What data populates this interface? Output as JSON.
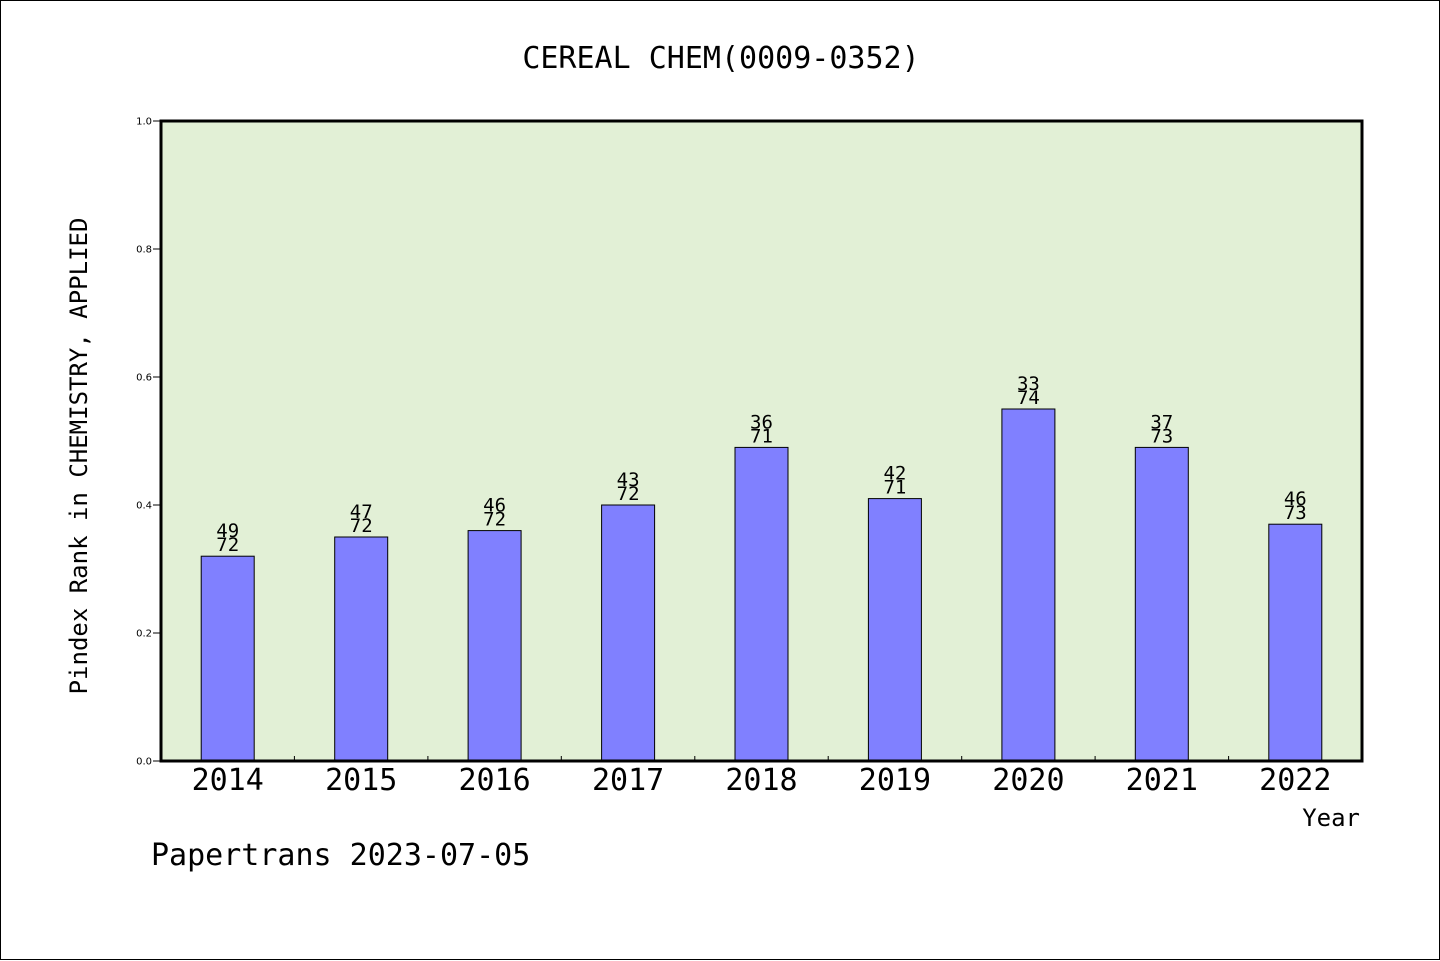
{
  "chart_data": {
    "type": "bar",
    "title": "CEREAL CHEM(0009-0352)",
    "ylabel": "Pindex Rank in CHEMISTRY, APPLIED",
    "xlabel": "Year",
    "ylim": [
      0,
      1.0
    ],
    "yticks": [
      "0.0",
      "0.2",
      "0.4",
      "0.6",
      "0.8",
      "1.0"
    ],
    "categories": [
      "2014",
      "2015",
      "2016",
      "2017",
      "2018",
      "2019",
      "2020",
      "2021",
      "2022"
    ],
    "values": [
      0.32,
      0.35,
      0.36,
      0.4,
      0.49,
      0.41,
      0.55,
      0.49,
      0.37
    ],
    "rank": [
      "49",
      "47",
      "46",
      "43",
      "36",
      "42",
      "33",
      "37",
      "46"
    ],
    "total": [
      "72",
      "72",
      "72",
      "72",
      "71",
      "71",
      "74",
      "73",
      "73"
    ],
    "grid": false,
    "colors": {
      "plot_background": "#e2f0d6",
      "bar": "#8080ff"
    }
  },
  "footer": {
    "text": "Papertrans 2023-07-05"
  }
}
